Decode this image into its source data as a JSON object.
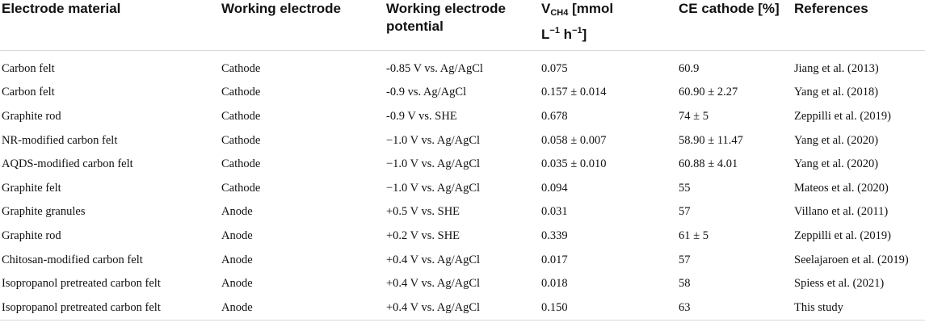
{
  "table": {
    "headers": {
      "electrode_material": "Electrode material",
      "working_electrode": "Working electrode",
      "potential": "Working electrode potential",
      "v_main": "V",
      "v_sub": "CH4",
      "v_unit_a": "[mmol",
      "v_unit_b": "L",
      "v_sup": "−1",
      "v_unit_c": "h",
      "v_sup2": "−1",
      "v_unit_d": "]",
      "ce": "CE cathode [%]",
      "references": "References"
    },
    "rows": [
      [
        "Carbon felt",
        "Cathode",
        "-0.85 V vs. Ag/AgCl",
        "0.075",
        "60.9",
        "Jiang et al. (2013)"
      ],
      [
        "Carbon felt",
        "Cathode",
        "-0.9 vs. Ag/AgCl",
        "0.157 ± 0.014",
        "60.90 ± 2.27",
        "Yang et al. (2018)"
      ],
      [
        "Graphite rod",
        "Cathode",
        "-0.9 V vs. SHE",
        "0.678",
        "74 ± 5",
        "Zeppilli et al. (2019)"
      ],
      [
        "NR-modified carbon felt",
        "Cathode",
        "−1.0 V vs. Ag/AgCl",
        "0.058 ± 0.007",
        "58.90 ± 11.47",
        "Yang et al. (2020)"
      ],
      [
        "AQDS-modified carbon felt",
        "Cathode",
        "−1.0 V vs. Ag/AgCl",
        "0.035 ± 0.010",
        "60.88 ± 4.01",
        "Yang et al. (2020)"
      ],
      [
        "Graphite felt",
        "Cathode",
        "−1.0 V vs. Ag/AgCl",
        "0.094",
        "55",
        "Mateos et al. (2020)"
      ],
      [
        "Graphite granules",
        "Anode",
        "+0.5 V vs. SHE",
        "0.031",
        "57",
        "Villano et al. (2011)"
      ],
      [
        "Graphite rod",
        "Anode",
        "+0.2 V vs. SHE",
        "0.339",
        "61 ± 5",
        "Zeppilli et al. (2019)"
      ],
      [
        "Chitosan-modified carbon felt",
        "Anode",
        "+0.4 V vs. Ag/AgCl",
        "0.017",
        "57",
        "Seelajaroen et al. (2019)"
      ],
      [
        "Isopropanol pretreated carbon felt",
        "Anode",
        "+0.4 V vs. Ag/AgCl",
        "0.018",
        "58",
        "Spiess et al. (2021)"
      ],
      [
        "Isopropanol pretreated carbon felt",
        "Anode",
        "+0.4 V vs. Ag/AgCl",
        "0.150",
        "63",
        "This study"
      ]
    ]
  }
}
